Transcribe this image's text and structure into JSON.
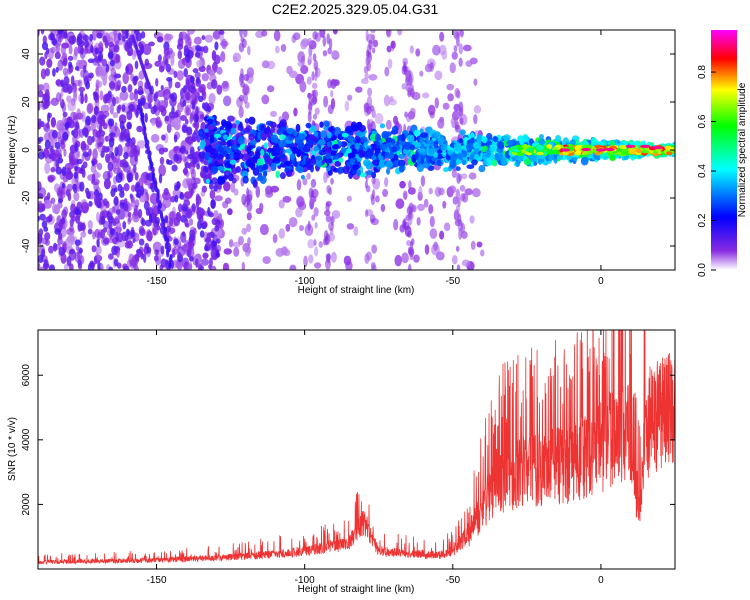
{
  "title": "C2E2.2025.329.05.04.G31",
  "chart_data": [
    {
      "type": "heatmap",
      "xlabel": "Height of straight line (km)",
      "ylabel": "Frequency (Hz)",
      "xlim": [
        -190,
        25
      ],
      "ylim": [
        -50,
        50
      ],
      "xticks": [
        -150,
        -100,
        -50,
        0
      ],
      "yticks": [
        -40,
        -20,
        0,
        20,
        40
      ],
      "colorbar": {
        "label": "Normalized spectral amplitude",
        "range": [
          0,
          0.97
        ],
        "ticks": [
          0.0,
          0.2,
          0.4,
          0.6,
          0.8
        ],
        "colors": [
          "#ffffff",
          "#8a2be2",
          "#0000ff",
          "#00ffff",
          "#00ff00",
          "#ffff00",
          "#ff0000",
          "#ff00ff"
        ]
      },
      "features": {
        "main_signal_frequency_hz": 0,
        "noise_region_km": [
          -190,
          -125
        ],
        "diagonal_streak": {
          "x_start": -156,
          "x_end": -145,
          "f_start": 20,
          "f_end": -48
        }
      }
    },
    {
      "type": "line",
      "xlabel": "Height of straight line (km)",
      "ylabel": "SNR (10 * v/v)",
      "xlim": [
        -190,
        25
      ],
      "ylim": [
        0,
        7400
      ],
      "xticks": [
        -150,
        -100,
        -50,
        0
      ],
      "yticks": [
        2000,
        4000,
        6000
      ],
      "color": "#ee3333",
      "envelope_km": [
        -190,
        -150,
        -120,
        -100,
        -85,
        -80,
        -78,
        -75,
        -55,
        -50,
        -45,
        -40,
        -38,
        -35,
        -30,
        -25,
        -20,
        -15,
        -10,
        -5,
        0,
        5,
        10,
        11,
        13,
        15,
        20,
        25
      ],
      "envelope_snr": [
        280,
        350,
        500,
        700,
        1050,
        1900,
        1400,
        700,
        550,
        700,
        1400,
        2600,
        3200,
        3800,
        4000,
        4100,
        4300,
        4400,
        4500,
        4800,
        5200,
        5700,
        6000,
        3700,
        2600,
        6200,
        6600,
        6800
      ]
    }
  ]
}
